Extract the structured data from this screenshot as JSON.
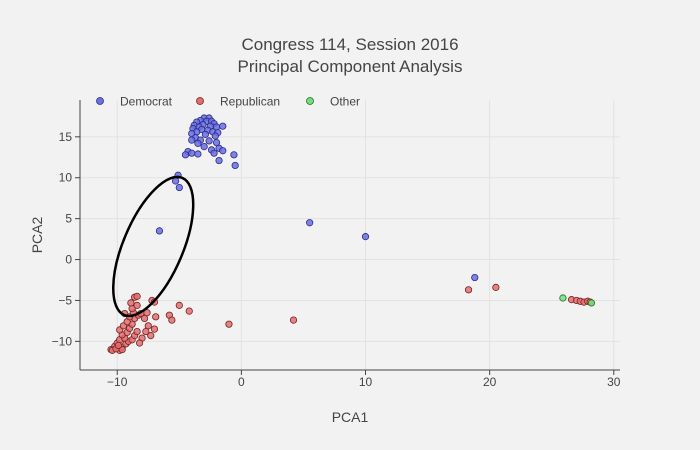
{
  "chart_data": {
    "type": "scatter",
    "title_lines": [
      "Congress 114, Session 2016",
      "Principal Component Analysis"
    ],
    "xlabel": "PCA1",
    "ylabel": "PCA2",
    "xlim": [
      -13,
      30.5
    ],
    "ylim": [
      -13.5,
      19.5
    ],
    "xticks": [
      -10,
      0,
      10,
      20,
      30
    ],
    "yticks": [
      -10,
      -5,
      0,
      5,
      10,
      15
    ],
    "xtick_labels": [
      "−10",
      "0",
      "10",
      "20",
      "30"
    ],
    "ytick_labels": [
      "−10",
      "−5",
      "0",
      "5",
      "10",
      "15"
    ],
    "grid": true,
    "legend_placement": "top-left",
    "annotation_ellipse": {
      "cx": -7.1,
      "cy": 1.6,
      "rx": 2.4,
      "ry": 9.1,
      "rotation_deg": 23,
      "color": "#000000"
    },
    "series": [
      {
        "name": "Democrat",
        "fill": "#6a70e0",
        "stroke": "#2a2a8a",
        "points": [
          [
            -3.0,
            17.3
          ],
          [
            -2.6,
            17.3
          ],
          [
            -3.3,
            17.0
          ],
          [
            -2.8,
            16.9
          ],
          [
            -2.4,
            16.9
          ],
          [
            -3.6,
            16.8
          ],
          [
            -2.2,
            16.6
          ],
          [
            -3.1,
            16.5
          ],
          [
            -3.8,
            16.4
          ],
          [
            -2.5,
            16.3
          ],
          [
            -3.4,
            16.2
          ],
          [
            -2.0,
            16.2
          ],
          [
            -1.5,
            16.3
          ],
          [
            -3.9,
            16.0
          ],
          [
            -3.2,
            15.9
          ],
          [
            -2.7,
            15.8
          ],
          [
            -2.3,
            15.6
          ],
          [
            -3.6,
            15.6
          ],
          [
            -1.9,
            15.5
          ],
          [
            -4.0,
            15.4
          ],
          [
            -2.9,
            15.3
          ],
          [
            -2.1,
            15.1
          ],
          [
            -3.7,
            14.9
          ],
          [
            -3.3,
            14.6
          ],
          [
            -2.6,
            14.5
          ],
          [
            -2.0,
            14.3
          ],
          [
            -3.5,
            14.2
          ],
          [
            -1.8,
            13.6
          ],
          [
            -3.0,
            13.8
          ],
          [
            -4.0,
            14.6
          ],
          [
            -2.4,
            13.4
          ],
          [
            -1.5,
            13.3
          ],
          [
            -4.3,
            13.2
          ],
          [
            -4.5,
            12.8
          ],
          [
            -4.0,
            13.0
          ],
          [
            -3.5,
            12.9
          ],
          [
            -2.2,
            13.0
          ],
          [
            -0.6,
            12.8
          ],
          [
            -1.8,
            12.1
          ],
          [
            -0.5,
            11.5
          ],
          [
            -5.1,
            10.3
          ],
          [
            -5.3,
            9.6
          ],
          [
            -5.0,
            8.8
          ],
          [
            -6.6,
            3.5
          ],
          [
            5.5,
            4.5
          ],
          [
            10.0,
            2.8
          ],
          [
            18.8,
            -2.2
          ]
        ]
      },
      {
        "name": "Republican",
        "fill": "#e07070",
        "stroke": "#7a2020",
        "points": [
          [
            -10.2,
            -10.6
          ],
          [
            -10.5,
            -11.0
          ],
          [
            -9.8,
            -11.1
          ],
          [
            -10.0,
            -10.2
          ],
          [
            -9.6,
            -10.7
          ],
          [
            -9.3,
            -10.3
          ],
          [
            -9.8,
            -9.8
          ],
          [
            -9.1,
            -10.0
          ],
          [
            -9.4,
            -9.6
          ],
          [
            -8.8,
            -9.8
          ],
          [
            -9.6,
            -9.2
          ],
          [
            -8.6,
            -9.3
          ],
          [
            -9.2,
            -8.9
          ],
          [
            -9.8,
            -8.6
          ],
          [
            -9.0,
            -8.4
          ],
          [
            -8.4,
            -8.8
          ],
          [
            -9.5,
            -8.1
          ],
          [
            -8.8,
            -7.9
          ],
          [
            -9.2,
            -7.6
          ],
          [
            -8.6,
            -7.2
          ],
          [
            -9.0,
            -7.0
          ],
          [
            -8.3,
            -6.8
          ],
          [
            -9.4,
            -6.6
          ],
          [
            -8.7,
            -6.5
          ],
          [
            -8.1,
            -6.6
          ],
          [
            -8.8,
            -6.0
          ],
          [
            -8.4,
            -5.6
          ],
          [
            -8.9,
            -5.3
          ],
          [
            -8.6,
            -4.6
          ],
          [
            -8.4,
            -4.5
          ],
          [
            -7.6,
            -6.5
          ],
          [
            -7.8,
            -7.2
          ],
          [
            -7.5,
            -8.1
          ],
          [
            -7.7,
            -8.8
          ],
          [
            -8.0,
            -9.6
          ],
          [
            -7.3,
            -9.3
          ],
          [
            -7.0,
            -8.5
          ],
          [
            -7.2,
            -5.0
          ],
          [
            -7.0,
            -5.2
          ],
          [
            -6.9,
            -7.0
          ],
          [
            -10.4,
            -11.1
          ],
          [
            -10.1,
            -10.9
          ],
          [
            -9.6,
            -11.0
          ],
          [
            -9.9,
            -10.5
          ],
          [
            -8.2,
            -10.2
          ],
          [
            -5.8,
            -6.8
          ],
          [
            -5.6,
            -7.4
          ],
          [
            -5.0,
            -5.6
          ],
          [
            -4.2,
            -6.3
          ],
          [
            -1.0,
            -7.9
          ],
          [
            4.2,
            -7.4
          ],
          [
            18.3,
            -3.7
          ],
          [
            20.5,
            -3.4
          ],
          [
            26.6,
            -4.9
          ],
          [
            27.0,
            -5.0
          ],
          [
            27.3,
            -5.1
          ],
          [
            27.6,
            -5.2
          ],
          [
            27.9,
            -5.1
          ],
          [
            28.1,
            -5.2
          ]
        ]
      },
      {
        "name": "Other",
        "fill": "#6ee07a",
        "stroke": "#2a6a2a",
        "points": [
          [
            25.9,
            -4.7
          ],
          [
            28.2,
            -5.3
          ]
        ]
      }
    ]
  }
}
